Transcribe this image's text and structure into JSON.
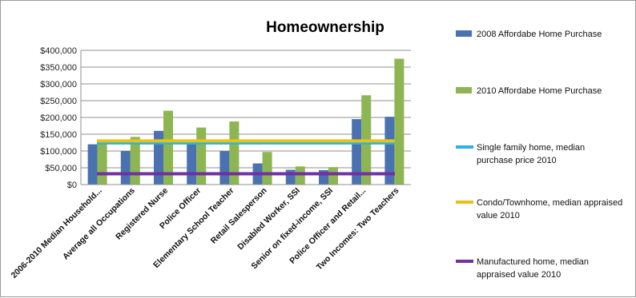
{
  "chart_data": {
    "type": "bar",
    "title": "Homeownership",
    "xlabel": "",
    "ylabel": "",
    "ylim": [
      0,
      400000
    ],
    "yticks": [
      0,
      50000,
      100000,
      150000,
      200000,
      250000,
      300000,
      350000,
      400000
    ],
    "ytick_labels": [
      "$0",
      "$50,000",
      "$100,000",
      "$150,000",
      "$200,000",
      "$250,000",
      "$300,000",
      "$350,000",
      "$400,000"
    ],
    "grid": true,
    "legend_position": "right",
    "categories": [
      "2006-2010 Median Household...",
      "Average all Occupations",
      "Registered Nurse",
      "Police Officer",
      "Elementary School Teacher",
      "Retail Salesperson",
      "Disabled Worker, SSI",
      "Senior on fixed-income, SSI",
      "Police Officer and Retail...",
      "Two Incomes: Two Teachers"
    ],
    "series": [
      {
        "name": "2008 Affordabe Home Purchase",
        "color": "#4a72b0",
        "values": [
          120000,
          100000,
          160000,
          120000,
          100000,
          63000,
          44000,
          43000,
          195000,
          202000
        ]
      },
      {
        "name": "2010 Affordabe Home Purchase",
        "color": "#8db653",
        "values": [
          130000,
          142000,
          220000,
          170000,
          188000,
          97000,
          54000,
          52000,
          266000,
          375000
        ]
      }
    ],
    "reference_lines": [
      {
        "name": "Single family home, median purchase price 2010",
        "color": "#2bb3de",
        "value": 124000
      },
      {
        "name": "Condo/Townhome, median appraised value 2010",
        "color": "#e6c21a",
        "value": 130000
      },
      {
        "name": "Manufactured home, median appraised value 2010",
        "color": "#7030a0",
        "value": 32000
      }
    ]
  }
}
